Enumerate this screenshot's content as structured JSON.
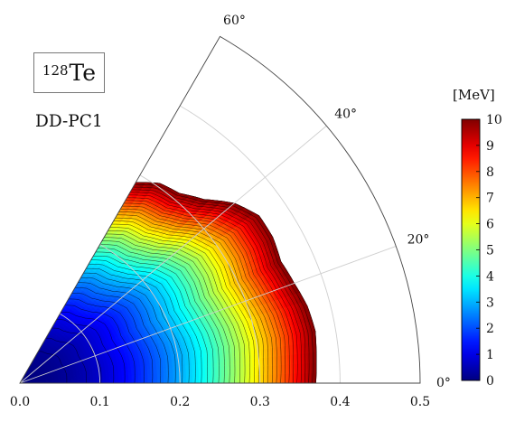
{
  "chart_data": {
    "type": "heatmap",
    "subtype": "polar-sextant potential energy surface (beta, gamma)",
    "nucleus": {
      "mass_number": "128",
      "symbol": "Te"
    },
    "model_label": "DD-PC1",
    "r_axis": {
      "variable": "beta",
      "range": [
        0,
        0.5
      ],
      "ticks": [
        "0.0",
        "0.1",
        "0.2",
        "0.3",
        "0.4",
        "0.5"
      ]
    },
    "angle_axis": {
      "variable": "gamma",
      "unit": "deg",
      "range": [
        0,
        60
      ],
      "ticks": [
        "0°",
        "20°",
        "40°",
        "60°"
      ]
    },
    "grid": true,
    "colorbar": {
      "label": "[MeV]",
      "colormap": "jet",
      "range": [
        0,
        10
      ],
      "ticks": [
        "0",
        "1",
        "2",
        "3",
        "4",
        "5",
        "6",
        "7",
        "8",
        "9",
        "10"
      ],
      "position": "right"
    },
    "contours": {
      "step_MeV": 0.25,
      "max_MeV": 10
    },
    "cutoff_boundary_E10": [
      {
        "gamma": 0,
        "beta": 0.37
      },
      {
        "gamma": 5,
        "beta": 0.372
      },
      {
        "gamma": 10,
        "beta": 0.375
      },
      {
        "gamma": 15,
        "beta": 0.372
      },
      {
        "gamma": 20,
        "beta": 0.365
      },
      {
        "gamma": 25,
        "beta": 0.36
      },
      {
        "gamma": 30,
        "beta": 0.365
      },
      {
        "gamma": 35,
        "beta": 0.365
      },
      {
        "gamma": 40,
        "beta": 0.35
      },
      {
        "gamma": 45,
        "beta": 0.325
      },
      {
        "gamma": 50,
        "beta": 0.31
      },
      {
        "gamma": 55,
        "beta": 0.305
      },
      {
        "gamma": 60,
        "beta": 0.29
      }
    ],
    "energy_minimum": {
      "beta": 0.0,
      "gamma": 0,
      "E_MeV": 0
    }
  }
}
